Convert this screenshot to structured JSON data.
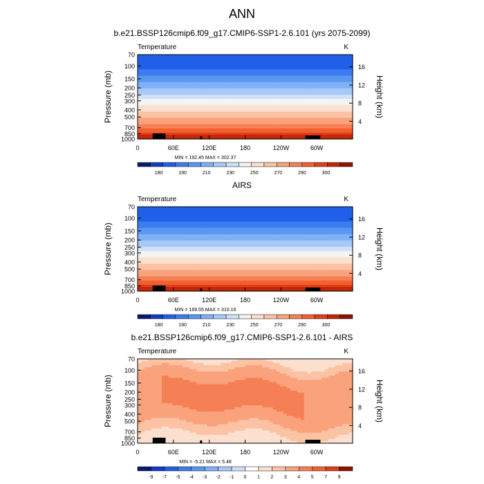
{
  "page": {
    "title": "ANN"
  },
  "chart_data": [
    {
      "type": "heatmap",
      "title": "b.e21.BSSP126cmip6.f09_g17.CMIP6-SSP1-2.6.101 (yrs 2075-2099)",
      "variable": "Temperature",
      "units": "K",
      "ylabel": "Pressure (mb)",
      "ylabel_right": "Height (km)",
      "x_ticks": [
        "0",
        "60E",
        "120E",
        "180",
        "120W",
        "60W"
      ],
      "y_ticks": [
        "70",
        "100",
        "150",
        "200",
        "250",
        "300",
        "400",
        "500",
        "700",
        "850",
        "1000"
      ],
      "y_ticks_right": [
        "16",
        "12",
        "8",
        "4"
      ],
      "stats": "MIN = 192.45   MAX = 302.37",
      "colorbar_labels": [
        "180",
        "190",
        "210",
        "230",
        "250",
        "270",
        "290",
        "300"
      ],
      "palette": [
        "#0a1a6e",
        "#0f3cc8",
        "#2060e8",
        "#3c7cf0",
        "#5a96f2",
        "#80b0f5",
        "#a8c9f7",
        "#cfe0fa",
        "#f4f4f4",
        "#fbe0d0",
        "#fbc3a3",
        "#f9a27c",
        "#f68055",
        "#f2602f",
        "#e23f19",
        "#c02808",
        "#8f1302"
      ],
      "field": "temperature"
    },
    {
      "type": "heatmap",
      "title": "AIRS",
      "variable": "Temperature",
      "units": "K",
      "ylabel": "Pressure (mb)",
      "ylabel_right": "Height (km)",
      "x_ticks": [
        "0",
        "60E",
        "120E",
        "180",
        "120W",
        "60W"
      ],
      "y_ticks": [
        "70",
        "100",
        "150",
        "200",
        "250",
        "300",
        "400",
        "500",
        "700",
        "850",
        "1000"
      ],
      "y_ticks_right": [
        "16",
        "12",
        "8",
        "4"
      ],
      "stats": "MIN = 189.55   MAX = 310.16",
      "colorbar_labels": [
        "180",
        "190",
        "210",
        "230",
        "250",
        "270",
        "290",
        "300"
      ],
      "palette": [
        "#0a1a6e",
        "#0f3cc8",
        "#2060e8",
        "#3c7cf0",
        "#5a96f2",
        "#80b0f5",
        "#a8c9f7",
        "#cfe0fa",
        "#f4f4f4",
        "#fbe0d0",
        "#fbc3a3",
        "#f9a27c",
        "#f68055",
        "#f2602f",
        "#e23f19",
        "#c02808",
        "#8f1302"
      ],
      "field": "temperature"
    },
    {
      "type": "heatmap",
      "title": "b.e21.BSSP126cmip6.f09_g17.CMIP6-SSP1-2.6.101 - AIRS",
      "variable": "Temperature",
      "units": "K",
      "ylabel": "Pressure (mb)",
      "ylabel_right": "Height (km)",
      "x_ticks": [
        "0",
        "60E",
        "120E",
        "180",
        "120W",
        "60W"
      ],
      "y_ticks": [
        "70",
        "100",
        "150",
        "200",
        "250",
        "300",
        "400",
        "500",
        "700",
        "850",
        "1000"
      ],
      "y_ticks_right": [
        "16",
        "12",
        "8",
        "4"
      ],
      "stats": "MIN =  -5.21   MAX =   5.48",
      "colorbar_labels": [
        "-9",
        "-7",
        "-5",
        "-4",
        "-3",
        "-2",
        "-1",
        "0",
        "1",
        "2",
        "3",
        "4",
        "5",
        "7",
        "9"
      ],
      "palette": [
        "#0a1a6e",
        "#0f3cc8",
        "#2060e8",
        "#3c7cf0",
        "#5a96f2",
        "#80b0f5",
        "#a8c9f7",
        "#cfe0fa",
        "#ffffff",
        "#fbe0d0",
        "#fbc3a3",
        "#f9a27c",
        "#f68055",
        "#f2602f",
        "#e23f19",
        "#8f1302"
      ],
      "field": "difference"
    }
  ]
}
